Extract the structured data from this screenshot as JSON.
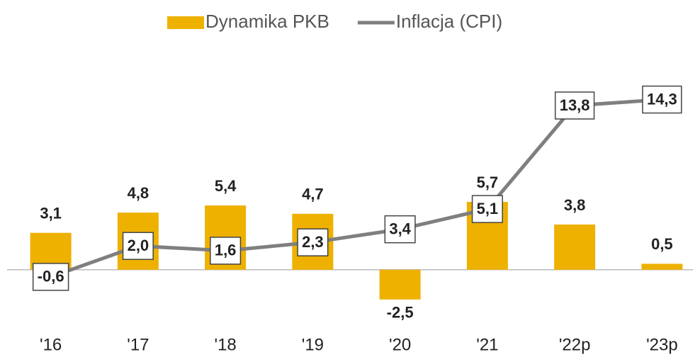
{
  "chart_data": {
    "type": "bar_line",
    "categories": [
      "'16",
      "'17",
      "'18",
      "'19",
      "'20",
      "'21",
      "'22p",
      "'23p"
    ],
    "ylim": [
      -4,
      16
    ],
    "legend": "top",
    "series": [
      {
        "name": "Dynamika PKB",
        "type": "bar",
        "color": "#eeb100",
        "values": [
          3.1,
          4.8,
          5.4,
          4.7,
          -2.5,
          5.7,
          3.8,
          0.5
        ],
        "value_labels": [
          "3,1",
          "4,8",
          "5,4",
          "4,7",
          "-2,5",
          "5,7",
          "3,8",
          "0,5"
        ]
      },
      {
        "name": "Inflacja (CPI)",
        "type": "line",
        "color": "#7f7f7f",
        "values": [
          -0.6,
          2.0,
          1.6,
          2.3,
          3.4,
          5.1,
          13.8,
          14.3
        ],
        "value_labels": [
          "-0,6",
          "2,0",
          "1,6",
          "2,3",
          "3,4",
          "5,1",
          "13,8",
          "14,3"
        ]
      }
    ]
  }
}
